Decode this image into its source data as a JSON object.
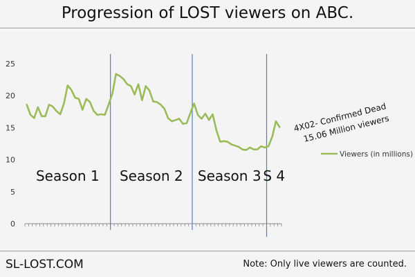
{
  "title": "Progression of LOST viewers on ABC.",
  "footer": {
    "site": "SL-LOST.COM",
    "note": "Note: Only live viewers are counted."
  },
  "colors": {
    "line": "#9bbb59",
    "season_divider": "#4f81bd",
    "axis": "#888888",
    "text": "#111111",
    "background": "#f4f4f4"
  },
  "chart_data": {
    "type": "line",
    "title": "Progression of LOST viewers on ABC.",
    "xlabel": "",
    "ylabel": "",
    "ylim": [
      0,
      25
    ],
    "yticks": [
      0,
      5,
      10,
      15,
      20,
      25
    ],
    "grid": false,
    "legend_position": "right",
    "series": [
      {
        "name": "Viewers (in millions)",
        "values": [
          18.6,
          17.0,
          16.5,
          18.2,
          16.8,
          16.8,
          18.6,
          18.3,
          17.6,
          17.1,
          18.8,
          21.6,
          20.9,
          19.7,
          19.5,
          17.8,
          19.5,
          19.0,
          17.6,
          17.0,
          17.1,
          17.0,
          18.6,
          20.3,
          23.4,
          23.1,
          22.6,
          21.8,
          21.5,
          20.2,
          21.8,
          19.3,
          21.5,
          20.8,
          19.1,
          19.0,
          18.6,
          18.0,
          16.5,
          16.0,
          16.2,
          16.4,
          15.6,
          15.7,
          17.3,
          18.8,
          17.0,
          16.4,
          17.2,
          16.2,
          17.1,
          14.6,
          12.8,
          12.9,
          12.8,
          12.4,
          12.2,
          12.0,
          11.6,
          11.5,
          11.9,
          11.6,
          11.6,
          12.1,
          11.9,
          12.1,
          13.6,
          16.0,
          15.1
        ]
      }
    ],
    "season_boundaries": [
      23,
      45,
      65
    ],
    "season_labels": [
      "Season 1",
      "Season 2",
      "Season 3",
      "S 4"
    ],
    "annotation": {
      "text_lines": [
        "4X02- Confirmed Dead",
        "15.06 Million viewers"
      ]
    }
  }
}
